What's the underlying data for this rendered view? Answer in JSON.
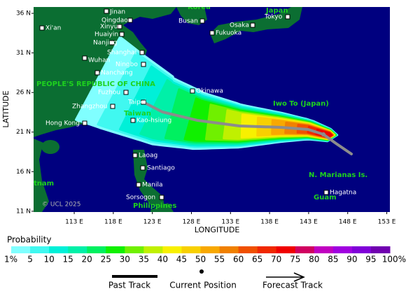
{
  "map": {
    "xlim": [
      107.8,
      153.4
    ],
    "ylim": [
      10.9,
      36.8
    ],
    "xticks": [
      {
        "value": 113,
        "label": "113 E"
      },
      {
        "value": 118,
        "label": "118 E"
      },
      {
        "value": 123,
        "label": "123 E"
      },
      {
        "value": 128,
        "label": "128 E"
      },
      {
        "value": 133,
        "label": "133 E"
      },
      {
        "value": 138,
        "label": "138 E"
      },
      {
        "value": 143,
        "label": "143 E"
      },
      {
        "value": 148,
        "label": "148 E"
      },
      {
        "value": 153,
        "label": "153 E"
      }
    ],
    "yticks": [
      {
        "value": 11,
        "label": "11 N"
      },
      {
        "value": 16,
        "label": "16 N"
      },
      {
        "value": 21,
        "label": "21 N"
      },
      {
        "value": 26,
        "label": "26 N"
      },
      {
        "value": 31,
        "label": "31 N"
      },
      {
        "value": 36,
        "label": "36 N"
      }
    ],
    "xlabel": "LONGITUDE",
    "ylabel": "LATITUDE",
    "ocean_color": "#00007f",
    "land_color": "#0b6e32",
    "track_color": "#8c8c8c",
    "places": [
      "Jinan",
      "Qingdao",
      "Xinyu",
      "Huaiyin",
      "Nanjing",
      "Shanghai",
      "Wuhan",
      "Ningbo",
      "Nanchang",
      "Fuzhou",
      "Taipei",
      "Zhangzhou",
      "Kao-hsiung",
      "Hong Kong",
      "Xi'an",
      "Okinawa",
      "Busan",
      "Osaka",
      "Tokyo",
      "Fukuoka",
      "Laoag",
      "Santiago",
      "Manila",
      "Sorsogon",
      "Hagatna"
    ],
    "regions": [
      "PEOPLE'S REPUBLIC OF CHINA",
      "Taiwan",
      "Iwo To (Japan)",
      "N. Marianas Is.",
      "Guam",
      "Philippines",
      "tnam",
      "Korea",
      "Japan"
    ],
    "credit": "© UCL 2025"
  },
  "legend": {
    "title": "Probability",
    "labels": [
      "1%",
      "5",
      "10",
      "15",
      "20",
      "25",
      "30",
      "35",
      "40",
      "45",
      "50",
      "55",
      "60",
      "65",
      "70",
      "75",
      "80",
      "85",
      "90",
      "95",
      "100%"
    ],
    "colors": [
      "#80ffff",
      "#40f8f0",
      "#00f0d8",
      "#00f0a8",
      "#00f060",
      "#10f000",
      "#70f000",
      "#c0f000",
      "#f8f000",
      "#f8d000",
      "#f8a800",
      "#f08000",
      "#f05000",
      "#f02800",
      "#f00000",
      "#d00060",
      "#c000c0",
      "#a000e0",
      "#8000d8",
      "#7000b0",
      "#600060"
    ],
    "track_items": [
      "Past Track",
      "Current Position",
      "Forecast Track"
    ]
  }
}
